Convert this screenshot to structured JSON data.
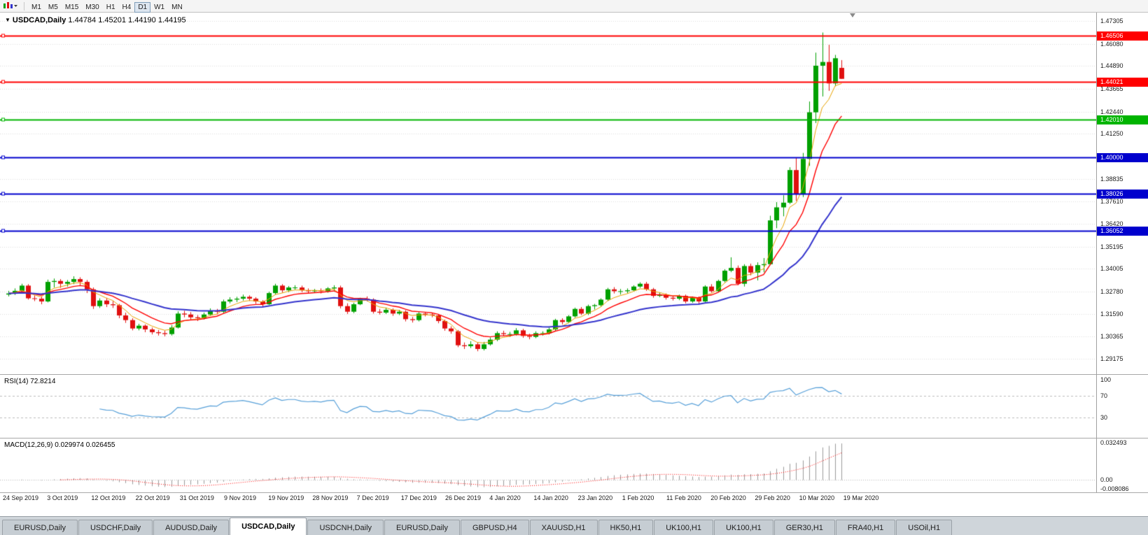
{
  "toolbar": {
    "timeframes": [
      "M1",
      "M5",
      "M15",
      "M30",
      "H1",
      "H4",
      "D1",
      "W1",
      "MN"
    ],
    "active_timeframe": "D1",
    "chart_type_icon": "candlestick-chart"
  },
  "chart_header": {
    "collapse_icon": "▼",
    "symbol": "USDCAD,Daily",
    "ohlc": "1.44784 1.45201 1.44190 1.44195"
  },
  "price_axis": {
    "ticks": [
      "1.47305",
      "1.46080",
      "1.44890",
      "1.43665",
      "1.42440",
      "1.41250",
      "1.38835",
      "1.37610",
      "1.36420",
      "1.35195",
      "1.34005",
      "1.32780",
      "1.31590",
      "1.30365",
      "1.29175"
    ]
  },
  "hlines": [
    {
      "price": 1.46506,
      "label": "1.46506",
      "color": "#FF0000"
    },
    {
      "price": 1.44021,
      "label": "1.44021",
      "color": "#FF0000"
    },
    {
      "price": 1.4201,
      "label": "1.42010",
      "color": "#00B400"
    },
    {
      "price": 1.4,
      "label": "1.40000",
      "color": "#0000CD"
    },
    {
      "price": 1.38026,
      "label": "1.38026",
      "color": "#0000CD"
    },
    {
      "price": 1.36052,
      "label": "1.36052",
      "color": "#0000CD"
    }
  ],
  "indicators": {
    "rsi": {
      "label": "RSI(14) 72.8214",
      "period": 14,
      "current": 72.8214,
      "levels": [
        70,
        30
      ],
      "range": [
        0,
        100
      ],
      "axis_ticks": [
        "100",
        "70",
        "30"
      ],
      "color": "#569FD8"
    },
    "macd": {
      "label": "MACD(12,26,9) 0.029974 0.026455",
      "fast": 12,
      "slow": 26,
      "signal_period": 9,
      "current_macd": 0.029974,
      "current_signal": 0.026455,
      "axis_ticks": [
        "0.032493",
        "0.00",
        "-0.008086"
      ],
      "range": [
        -0.008086,
        0.032493
      ],
      "hist_color": "#9A9A9A",
      "signal_color": "#FF0000"
    }
  },
  "date_axis": [
    "24 Sep 2019",
    "3 Oct 2019",
    "12 Oct 2019",
    "22 Oct 2019",
    "31 Oct 2019",
    "9 Nov 2019",
    "19 Nov 2019",
    "28 Nov 2019",
    "7 Dec 2019",
    "17 Dec 2019",
    "26 Dec 2019",
    "4 Jan 2020",
    "14 Jan 2020",
    "23 Jan 2020",
    "1 Feb 2020",
    "11 Feb 2020",
    "20 Feb 2020",
    "29 Feb 2020",
    "10 Mar 2020",
    "19 Mar 2020"
  ],
  "tabs": {
    "items": [
      "EURUSD,Daily",
      "USDCHF,Daily",
      "AUDUSD,Daily",
      "USDCAD,Daily",
      "USDCNH,Daily",
      "EURUSD,Daily",
      "GBPUSD,H4",
      "XAUUSD,H1",
      "HK50,H1",
      "UK100,H1",
      "UK100,H1",
      "GER30,H1",
      "FRA40,H1",
      "USOil,H1"
    ],
    "active_index": 3
  },
  "colors": {
    "up": "#00A000",
    "down": "#E01010",
    "grid": "#DCDCDC",
    "background": "#FFFFFF",
    "axis_text": "#1A1A1A"
  },
  "chart_data": {
    "type": "candlestick",
    "symbol": "USDCAD",
    "timeframe": "Daily",
    "visible_price_top": 1.4775,
    "visible_price_bottom": 1.2835,
    "candles": [
      [
        1.3262,
        1.3282,
        1.3252,
        1.3268
      ],
      [
        1.3268,
        1.3295,
        1.326,
        1.3282
      ],
      [
        1.3282,
        1.332,
        1.3276,
        1.331
      ],
      [
        1.331,
        1.3318,
        1.3235,
        1.3242
      ],
      [
        1.3242,
        1.3258,
        1.3227,
        1.324
      ],
      [
        1.324,
        1.3252,
        1.321,
        1.3225
      ],
      [
        1.3225,
        1.3342,
        1.322,
        1.333
      ],
      [
        1.333,
        1.3348,
        1.33,
        1.3335
      ],
      [
        1.3335,
        1.3345,
        1.3298,
        1.332
      ],
      [
        1.332,
        1.334,
        1.3305,
        1.333
      ],
      [
        1.333,
        1.336,
        1.3318,
        1.3345
      ],
      [
        1.3345,
        1.3355,
        1.331,
        1.333
      ],
      [
        1.333,
        1.334,
        1.327,
        1.329
      ],
      [
        1.329,
        1.33,
        1.3185,
        1.32
      ],
      [
        1.32,
        1.3242,
        1.319,
        1.323
      ],
      [
        1.323,
        1.3245,
        1.3195,
        1.321
      ],
      [
        1.321,
        1.3228,
        1.319,
        1.3205
      ],
      [
        1.3205,
        1.3212,
        1.3135,
        1.315
      ],
      [
        1.315,
        1.3165,
        1.311,
        1.3125
      ],
      [
        1.3125,
        1.3135,
        1.307,
        1.308
      ],
      [
        1.308,
        1.3105,
        1.307,
        1.3095
      ],
      [
        1.3095,
        1.3102,
        1.306,
        1.3075
      ],
      [
        1.3075,
        1.3085,
        1.3048,
        1.306
      ],
      [
        1.306,
        1.3072,
        1.3042,
        1.3055
      ],
      [
        1.3055,
        1.3068,
        1.3038,
        1.305
      ],
      [
        1.305,
        1.3098,
        1.3042,
        1.3085
      ],
      [
        1.3085,
        1.3172,
        1.308,
        1.316
      ],
      [
        1.316,
        1.3175,
        1.314,
        1.3155
      ],
      [
        1.3155,
        1.3168,
        1.3125,
        1.314
      ],
      [
        1.314,
        1.3152,
        1.312,
        1.3135
      ],
      [
        1.3135,
        1.3165,
        1.3128,
        1.3155
      ],
      [
        1.3155,
        1.3188,
        1.3148,
        1.3175
      ],
      [
        1.3175,
        1.3185,
        1.3155,
        1.317
      ],
      [
        1.317,
        1.3235,
        1.3162,
        1.3225
      ],
      [
        1.3225,
        1.3248,
        1.3215,
        1.3235
      ],
      [
        1.3235,
        1.325,
        1.3222,
        1.324
      ],
      [
        1.324,
        1.3262,
        1.323,
        1.325
      ],
      [
        1.325,
        1.3258,
        1.3228,
        1.324
      ],
      [
        1.324,
        1.3248,
        1.3212,
        1.3225
      ],
      [
        1.3225,
        1.3232,
        1.3195,
        1.321
      ],
      [
        1.321,
        1.3278,
        1.3205,
        1.327
      ],
      [
        1.327,
        1.332,
        1.3262,
        1.331
      ],
      [
        1.331,
        1.3318,
        1.3272,
        1.3285
      ],
      [
        1.3285,
        1.3308,
        1.3275,
        1.33
      ],
      [
        1.33,
        1.3312,
        1.3288,
        1.33
      ],
      [
        1.33,
        1.331,
        1.3275,
        1.3285
      ],
      [
        1.3285,
        1.3295,
        1.3268,
        1.328
      ],
      [
        1.328,
        1.3292,
        1.327,
        1.3285
      ],
      [
        1.3285,
        1.3295,
        1.3268,
        1.328
      ],
      [
        1.328,
        1.3302,
        1.3272,
        1.3295
      ],
      [
        1.3295,
        1.3312,
        1.328,
        1.33
      ],
      [
        1.33,
        1.331,
        1.3188,
        1.32
      ],
      [
        1.32,
        1.3215,
        1.3158,
        1.317
      ],
      [
        1.317,
        1.3218,
        1.3162,
        1.321
      ],
      [
        1.321,
        1.3245,
        1.3205,
        1.324
      ],
      [
        1.324,
        1.3252,
        1.3225,
        1.3235
      ],
      [
        1.3235,
        1.3242,
        1.316,
        1.317
      ],
      [
        1.317,
        1.3185,
        1.3155,
        1.3165
      ],
      [
        1.3165,
        1.3192,
        1.3158,
        1.318
      ],
      [
        1.318,
        1.3188,
        1.3148,
        1.316
      ],
      [
        1.316,
        1.318,
        1.3152,
        1.317
      ],
      [
        1.317,
        1.3178,
        1.3118,
        1.313
      ],
      [
        1.313,
        1.3142,
        1.3112,
        1.3125
      ],
      [
        1.3125,
        1.3168,
        1.3118,
        1.316
      ],
      [
        1.316,
        1.3168,
        1.3145,
        1.3155
      ],
      [
        1.3155,
        1.3162,
        1.314,
        1.315
      ],
      [
        1.315,
        1.3158,
        1.3108,
        1.312
      ],
      [
        1.312,
        1.3128,
        1.3068,
        1.308
      ],
      [
        1.308,
        1.3092,
        1.3052,
        1.3065
      ],
      [
        1.3065,
        1.3072,
        1.298,
        1.299
      ],
      [
        1.299,
        1.3005,
        1.297,
        1.2985
      ],
      [
        1.2985,
        1.3012,
        1.2975,
        1.2995
      ],
      [
        1.2995,
        1.3005,
        1.2958,
        1.297
      ],
      [
        1.297,
        1.3008,
        1.2962,
        1.2995
      ],
      [
        1.2995,
        1.3032,
        1.2988,
        1.302
      ],
      [
        1.302,
        1.3065,
        1.3012,
        1.3055
      ],
      [
        1.3055,
        1.3068,
        1.3038,
        1.305
      ],
      [
        1.305,
        1.3062,
        1.3035,
        1.305
      ],
      [
        1.305,
        1.3082,
        1.3042,
        1.307
      ],
      [
        1.307,
        1.3078,
        1.303,
        1.304
      ],
      [
        1.304,
        1.3052,
        1.3022,
        1.3035
      ],
      [
        1.3035,
        1.3065,
        1.3028,
        1.3055
      ],
      [
        1.3055,
        1.3065,
        1.3042,
        1.3055
      ],
      [
        1.3055,
        1.3085,
        1.3048,
        1.3075
      ],
      [
        1.3075,
        1.3132,
        1.3068,
        1.3125
      ],
      [
        1.3125,
        1.3135,
        1.3102,
        1.3115
      ],
      [
        1.3115,
        1.3152,
        1.3108,
        1.3145
      ],
      [
        1.3145,
        1.3192,
        1.3138,
        1.3185
      ],
      [
        1.3185,
        1.3195,
        1.3152,
        1.316
      ],
      [
        1.316,
        1.3208,
        1.3152,
        1.32
      ],
      [
        1.32,
        1.3212,
        1.3182,
        1.3205
      ],
      [
        1.3205,
        1.3242,
        1.3198,
        1.3235
      ],
      [
        1.3235,
        1.3298,
        1.3228,
        1.329
      ],
      [
        1.329,
        1.3302,
        1.3268,
        1.328
      ],
      [
        1.328,
        1.3292,
        1.3262,
        1.328
      ],
      [
        1.328,
        1.3295,
        1.3268,
        1.3285
      ],
      [
        1.3285,
        1.3312,
        1.3278,
        1.3305
      ],
      [
        1.3305,
        1.3328,
        1.3298,
        1.332
      ],
      [
        1.332,
        1.333,
        1.3282,
        1.329
      ],
      [
        1.329,
        1.3298,
        1.3245,
        1.3255
      ],
      [
        1.3255,
        1.3272,
        1.3248,
        1.326
      ],
      [
        1.326,
        1.3268,
        1.3235,
        1.3245
      ],
      [
        1.3245,
        1.3255,
        1.323,
        1.324
      ],
      [
        1.324,
        1.3262,
        1.3232,
        1.3255
      ],
      [
        1.3255,
        1.3262,
        1.3215,
        1.3225
      ],
      [
        1.3225,
        1.3252,
        1.3218,
        1.3245
      ],
      [
        1.3245,
        1.3252,
        1.3212,
        1.3225
      ],
      [
        1.3225,
        1.3312,
        1.322,
        1.3305
      ],
      [
        1.3305,
        1.3318,
        1.3272,
        1.328
      ],
      [
        1.328,
        1.3342,
        1.3275,
        1.3335
      ],
      [
        1.3335,
        1.3398,
        1.3328,
        1.339
      ],
      [
        1.339,
        1.3462,
        1.3382,
        1.3405
      ],
      [
        1.3405,
        1.3418,
        1.3312,
        1.332
      ],
      [
        1.332,
        1.3425,
        1.3305,
        1.3415
      ],
      [
        1.3415,
        1.3428,
        1.3365,
        1.338
      ],
      [
        1.338,
        1.3435,
        1.3338,
        1.342
      ],
      [
        1.342,
        1.3458,
        1.3382,
        1.3425
      ],
      [
        1.3425,
        1.3685,
        1.342,
        1.366
      ],
      [
        1.366,
        1.3758,
        1.3618,
        1.373
      ],
      [
        1.373,
        1.3795,
        1.3682,
        1.3755
      ],
      [
        1.3755,
        1.3945,
        1.3748,
        1.393
      ],
      [
        1.393,
        1.3998,
        1.3765,
        1.38
      ],
      [
        1.38,
        1.4022,
        1.3785,
        1.399
      ],
      [
        1.399,
        1.4298,
        1.3952,
        1.424
      ],
      [
        1.424,
        1.456,
        1.4182,
        1.449
      ],
      [
        1.449,
        1.4668,
        1.4325,
        1.451
      ],
      [
        1.451,
        1.4602,
        1.4355,
        1.4395
      ],
      [
        1.4395,
        1.4548,
        1.438,
        1.453
      ],
      [
        1.44784,
        1.45201,
        1.4419,
        1.44195
      ]
    ],
    "moving_averages": [
      {
        "name": "ma-fast",
        "method": "ema",
        "period": 5,
        "color": "#E8A200",
        "width": 1
      },
      {
        "name": "ma-mid",
        "method": "ema",
        "period": 10,
        "color": "#FF0000",
        "width": 1.4
      },
      {
        "name": "ma-slow",
        "method": "ema",
        "period": 30,
        "color": "#3333CC",
        "width": 2
      }
    ]
  }
}
